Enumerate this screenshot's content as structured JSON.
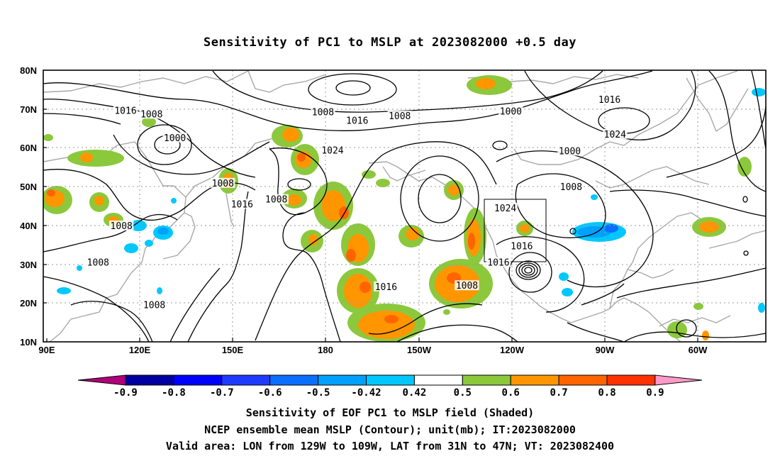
{
  "title": "Sensitivity of PC1 to MSLP at 2023082000 +0.5 day",
  "lat_labels": [
    "80N",
    "70N",
    "60N",
    "50N",
    "40N",
    "30N",
    "20N",
    "10N"
  ],
  "lon_labels": [
    "90E",
    "120E",
    "150E",
    "180",
    "150W",
    "120W",
    "90W",
    "60W"
  ],
  "contour_labels": [
    {
      "text": "1016",
      "lon": 118.5,
      "lat": 69.5
    },
    {
      "text": "1008",
      "lon": 128,
      "lat": 68.6
    },
    {
      "text": "1000",
      "lon": 136.5,
      "lat": 62.5
    },
    {
      "text": "1008",
      "lon": -169.5,
      "lat": 69.1
    },
    {
      "text": "1008",
      "lon": -141.5,
      "lat": 68.1
    },
    {
      "text": "1016",
      "lon": -157,
      "lat": 66.9
    },
    {
      "text": "1000",
      "lon": -101,
      "lat": 69.3
    },
    {
      "text": "1016",
      "lon": -65,
      "lat": 72.3
    },
    {
      "text": "1024",
      "lon": -63,
      "lat": 63.4
    },
    {
      "text": "1000",
      "lon": -79.5,
      "lat": 59.1
    },
    {
      "text": "1024",
      "lon": -166,
      "lat": 59.3
    },
    {
      "text": "1008",
      "lon": 154,
      "lat": 50.8
    },
    {
      "text": "1016",
      "lon": 161,
      "lat": 45.4
    },
    {
      "text": "1008",
      "lon": 173.5,
      "lat": 46.6
    },
    {
      "text": "1008",
      "lon": -79,
      "lat": 49.8
    },
    {
      "text": "1024",
      "lon": -103,
      "lat": 44.4
    },
    {
      "text": "1008",
      "lon": 117,
      "lat": 39.8
    },
    {
      "text": "1008",
      "lon": 108.5,
      "lat": 30.4
    },
    {
      "text": "1016",
      "lon": -97,
      "lat": 34.6
    },
    {
      "text": "1016",
      "lon": -105.5,
      "lat": 30.4
    },
    {
      "text": "1016",
      "lon": -146.5,
      "lat": 24.1
    },
    {
      "text": "1008",
      "lon": -117,
      "lat": 24.4
    },
    {
      "text": "1008",
      "lon": 129,
      "lat": 19.4
    }
  ],
  "colorbar": {
    "labels": [
      "-0.9",
      "-0.8",
      "-0.7",
      "-0.6",
      "-0.5",
      "-0.42",
      "0.42",
      "0.5",
      "0.6",
      "0.7",
      "0.8",
      "0.9"
    ],
    "colors": [
      "#b0007a",
      "#0000a0",
      "#0000ff",
      "#1e3cff",
      "#0a6eff",
      "#00a0ff",
      "#00c8ff",
      "#ffffff",
      "#8cc83c",
      "#ff9600",
      "#ff6400",
      "#ff3200",
      "#ff0000",
      "#ff9ac8"
    ]
  },
  "footer": {
    "line1": "Sensitivity of EOF PC1 to MSLP field (Shaded)",
    "line2": "NCEP ensemble mean MSLP (Contour); unit(mb); IT:2023082000",
    "line3": "Valid area: LON from 129W to 109W, LAT from 31N to 47N; VT: 2023082400"
  }
}
